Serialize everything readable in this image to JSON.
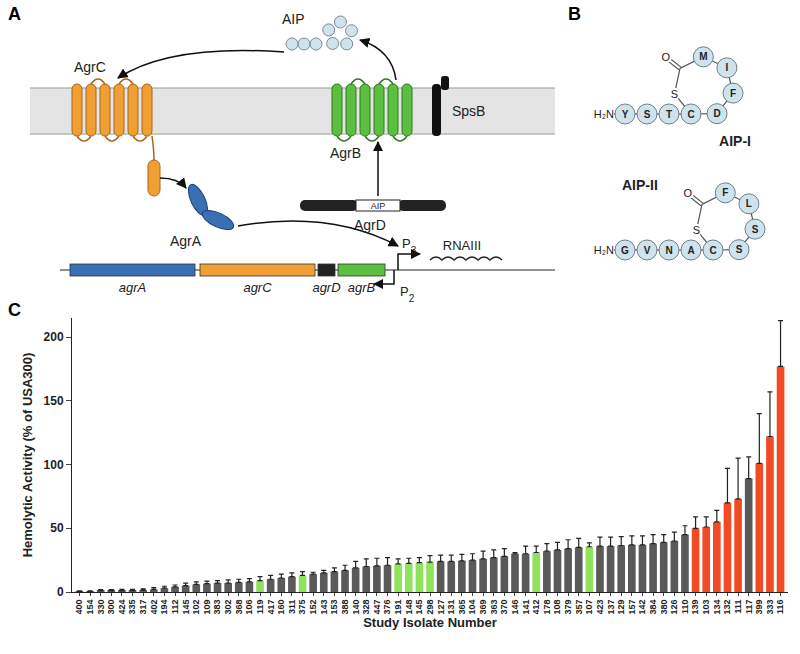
{
  "diagram": {
    "panel_labels": [
      "A",
      "B",
      "C"
    ],
    "pathway": {
      "aip": "AIP",
      "receptor": "AgrC",
      "regulator": "AgrA",
      "exporter": "AgrB",
      "peptidase": "SpsB",
      "precursor": "AgrD",
      "precursor_peptide": "AIP",
      "promoter_right": {
        "text": "P",
        "sub": "3"
      },
      "promoter_left": {
        "text": "P",
        "sub": "2"
      },
      "transcript": "RNAIII",
      "genes": [
        "agrA",
        "agrC",
        "agrD",
        "agrB"
      ]
    },
    "peptides": [
      {
        "name": "AIP-I",
        "n_terminus": "H₂N",
        "tail": [
          "Y",
          "S",
          "T"
        ],
        "ring": [
          "C",
          "D",
          "F",
          "I",
          "M"
        ],
        "bridge": "S",
        "carbonyl": "O"
      },
      {
        "name": "AIP-II",
        "n_terminus": "H₂N",
        "tail": [
          "G",
          "V",
          "N",
          "A"
        ],
        "ring": [
          "C",
          "S",
          "S",
          "L",
          "F"
        ],
        "bridge": "S",
        "carbonyl": "O"
      }
    ]
  },
  "chart_data": {
    "type": "bar",
    "xlabel": "Study Isolate Number",
    "ylabel": "Hemolytic Activity (% of USA300)",
    "categories": [
      "400",
      "154",
      "330",
      "300",
      "424",
      "335",
      "317",
      "402",
      "194",
      "112",
      "145",
      "102",
      "109",
      "383",
      "302",
      "368",
      "106",
      "119",
      "417",
      "160",
      "311",
      "375",
      "152",
      "143",
      "153",
      "388",
      "140",
      "328",
      "447",
      "376",
      "191",
      "148",
      "145",
      "298",
      "127",
      "131",
      "365",
      "104",
      "369",
      "363",
      "370",
      "146",
      "141",
      "412",
      "178",
      "108",
      "379",
      "357",
      "107",
      "423",
      "137",
      "129",
      "157",
      "142",
      "384",
      "380",
      "126",
      "110",
      "139",
      "103",
      "134",
      "132",
      "111",
      "117",
      "399",
      "333",
      "116"
    ],
    "values": [
      0.5,
      0.5,
      1,
      1,
      1,
      1,
      1.5,
      2,
      3,
      4,
      5,
      6,
      6.5,
      7,
      7,
      7.5,
      8,
      9,
      10,
      11,
      12,
      13,
      14,
      15,
      16,
      17,
      19,
      20,
      20.5,
      21,
      22,
      22.5,
      23,
      23.5,
      24,
      24,
      24.5,
      25,
      26,
      27,
      28,
      30,
      30,
      31,
      32,
      33,
      34,
      35,
      35.5,
      36,
      36,
      36.5,
      37,
      37,
      38,
      39,
      40,
      45,
      50,
      51,
      55,
      70,
      73,
      89,
      101,
      122,
      177
    ],
    "errors": [
      0.5,
      0.5,
      0.8,
      0.8,
      1,
      1,
      1,
      1.5,
      1.5,
      1.5,
      2,
      2,
      2,
      2,
      2.5,
      2.5,
      2.5,
      3,
      3,
      3,
      3,
      3,
      1.5,
      2,
      3,
      4,
      5,
      6,
      6,
      6,
      4,
      4,
      4,
      5,
      5,
      5,
      5,
      5,
      6,
      6,
      6,
      1,
      6,
      5,
      6,
      6,
      7,
      7,
      3,
      7,
      7,
      7,
      7,
      7,
      7,
      6,
      7,
      7,
      9,
      8,
      9,
      27,
      32,
      17,
      39,
      35,
      36
    ],
    "colors": [
      "#5a5a5a",
      "#5a5a5a",
      "#5a5a5a",
      "#5a5a5a",
      "#5a5a5a",
      "#5a5a5a",
      "#5a5a5a",
      "#5a5a5a",
      "#5a5a5a",
      "#5a5a5a",
      "#5a5a5a",
      "#5a5a5a",
      "#5a5a5a",
      "#5a5a5a",
      "#5a5a5a",
      "#5a5a5a",
      "#5a5a5a",
      "#8ee35b",
      "#5a5a5a",
      "#5a5a5a",
      "#5a5a5a",
      "#8ee35b",
      "#5a5a5a",
      "#5a5a5a",
      "#5a5a5a",
      "#5a5a5a",
      "#5a5a5a",
      "#5a5a5a",
      "#5a5a5a",
      "#5a5a5a",
      "#8ee35b",
      "#8ee35b",
      "#8ee35b",
      "#8ee35b",
      "#5a5a5a",
      "#5a5a5a",
      "#5a5a5a",
      "#5a5a5a",
      "#5a5a5a",
      "#5a5a5a",
      "#5a5a5a",
      "#5a5a5a",
      "#5a5a5a",
      "#8ee35b",
      "#5a5a5a",
      "#5a5a5a",
      "#5a5a5a",
      "#5a5a5a",
      "#8ee35b",
      "#5a5a5a",
      "#5a5a5a",
      "#5a5a5a",
      "#5a5a5a",
      "#5a5a5a",
      "#5a5a5a",
      "#5a5a5a",
      "#5a5a5a",
      "#5a5a5a",
      "#f24a24",
      "#f24a24",
      "#f24a24",
      "#f24a24",
      "#f24a24",
      "#5a5a5a",
      "#f24a24",
      "#f24a24",
      "#f24a24"
    ],
    "ylim": [
      0,
      215
    ],
    "yticks": [
      0,
      50,
      100,
      150,
      200
    ],
    "grid": false
  }
}
